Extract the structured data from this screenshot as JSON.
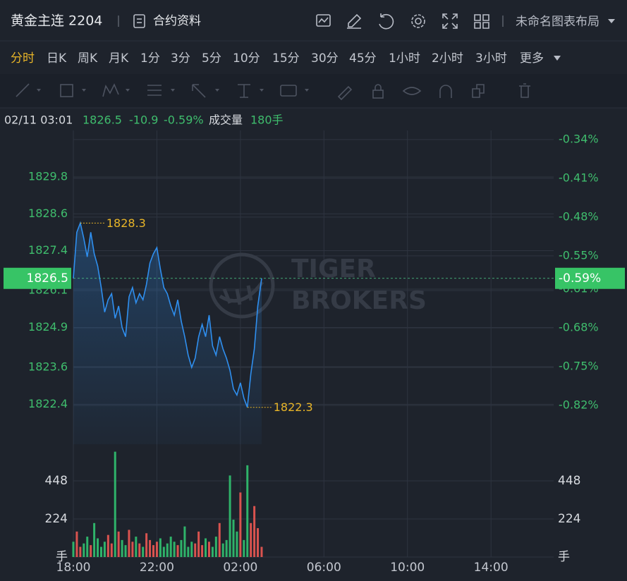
{
  "header": {
    "title": "黄金主连 2204",
    "contract_info": "合约资料",
    "layout_name": "未命名图表布局"
  },
  "timeframes": [
    "分时",
    "日K",
    "周K",
    "月K",
    "1分",
    "3分",
    "5分",
    "10分",
    "15分",
    "30分",
    "45分",
    "1小时",
    "2小时",
    "3小时",
    "更多"
  ],
  "active_timeframe": "分时",
  "info": {
    "datetime": "02/11 03:01",
    "change": -10.9,
    "volume_label": "成交量",
    "volume": "180手"
  },
  "chart_data": {
    "type": "line",
    "color": "#2f8fef",
    "grid": true,
    "watermark": [
      "TIGER",
      "BROKERS"
    ],
    "x": [
      0,
      10,
      20,
      30,
      40,
      50,
      60,
      70,
      80,
      90,
      100,
      110,
      120,
      130,
      140,
      150,
      160,
      170,
      180,
      190,
      200,
      210,
      220,
      230,
      240,
      250,
      260,
      270,
      280,
      290,
      300,
      310,
      320,
      330,
      340,
      350,
      360,
      370,
      380,
      390,
      400,
      410,
      420,
      430,
      440,
      450,
      460,
      470,
      480,
      490,
      500,
      510,
      520,
      530,
      541
    ],
    "values": [
      1826.5,
      1828.0,
      1828.3,
      1827.8,
      1827.2,
      1828.0,
      1827.3,
      1826.9,
      1826.2,
      1825.4,
      1825.8,
      1826.0,
      1825.2,
      1825.6,
      1824.9,
      1824.6,
      1825.9,
      1826.2,
      1825.7,
      1826.0,
      1825.8,
      1826.3,
      1827.0,
      1827.3,
      1827.5,
      1826.8,
      1826.2,
      1826.0,
      1825.6,
      1825.3,
      1825.8,
      1825.1,
      1824.6,
      1824.0,
      1823.6,
      1823.9,
      1824.6,
      1825.0,
      1824.6,
      1825.3,
      1824.3,
      1824.0,
      1824.6,
      1824.2,
      1823.9,
      1823.5,
      1822.9,
      1822.7,
      1823.1,
      1822.6,
      1822.3,
      1823.4,
      1824.2,
      1825.6,
      1826.5
    ],
    "xlim": [
      0,
      1380
    ],
    "xticks": [
      {
        "value": 0,
        "label": "18:00"
      },
      {
        "value": 240,
        "label": "22:00"
      },
      {
        "value": 480,
        "label": "02:00"
      },
      {
        "value": 720,
        "label": "06:00"
      },
      {
        "value": 960,
        "label": "10:00"
      },
      {
        "value": 1200,
        "label": "14:00"
      }
    ],
    "ylim": [
      1821.1,
      1831.2
    ],
    "yticks": [
      1829.8,
      1828.6,
      1827.4,
      1826.1,
      1824.9,
      1823.6,
      1822.4
    ],
    "y2lim": [
      -0.89,
      -0.33
    ],
    "y2ticks": [
      {
        "value": -0.34,
        "label": "-0.34%"
      },
      {
        "value": -0.41,
        "label": "-0.41%"
      },
      {
        "value": -0.48,
        "label": "-0.48%"
      },
      {
        "value": -0.55,
        "label": "-0.55%"
      },
      {
        "value": -0.61,
        "label": "-0.61%"
      },
      {
        "value": -0.68,
        "label": "-0.68%"
      },
      {
        "value": -0.75,
        "label": "-0.75%"
      },
      {
        "value": -0.82,
        "label": "-0.82%"
      }
    ],
    "current": 1826.5,
    "current_pct": {
      "value": -0.59,
      "label": "-0.59%"
    },
    "high": 1828.3,
    "low": 1822.3,
    "volume": {
      "values": [
        90,
        150,
        60,
        80,
        120,
        70,
        200,
        110,
        60,
        90,
        130,
        80,
        620,
        150,
        100,
        70,
        160,
        90,
        120,
        80,
        60,
        140,
        100,
        70,
        90,
        110,
        60,
        80,
        120,
        90,
        70,
        100,
        180,
        60,
        90,
        80,
        150,
        70,
        110,
        90,
        60,
        120,
        200,
        80,
        100,
        480,
        220,
        150,
        380,
        100,
        540,
        200,
        300,
        170,
        60
      ],
      "ylim": [
        0,
        664
      ],
      "yticks": [
        448,
        224,
        {
          "value": 0,
          "label": "手"
        }
      ],
      "up_color": "#d9534f",
      "down_color": "#2fb36a"
    }
  }
}
